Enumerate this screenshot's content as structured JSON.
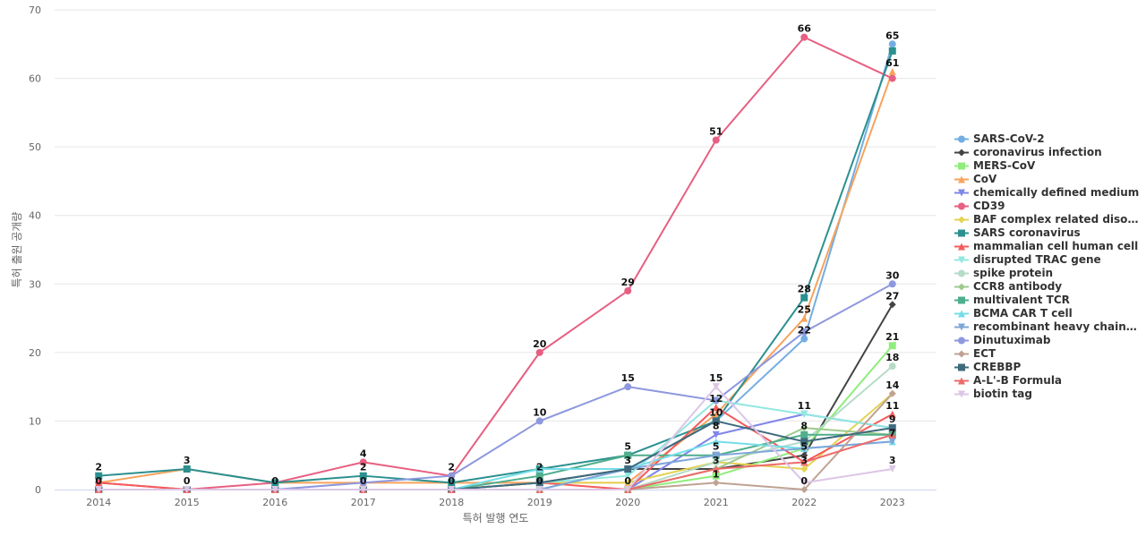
{
  "chart_data": {
    "type": "line",
    "xlabel": "특허 발행 연도",
    "ylabel": "특허 출원 공개량",
    "x": [
      "2014",
      "2015",
      "2016",
      "2017",
      "2018",
      "2019",
      "2020",
      "2021",
      "2022",
      "2023"
    ],
    "ylim": [
      0,
      70
    ],
    "yticks": [
      0,
      10,
      20,
      30,
      40,
      50,
      60,
      70
    ],
    "grid": true,
    "legend_position": "right",
    "series": [
      {
        "name": "SARS-CoV-2",
        "color": "#74ade3",
        "marker": "circle",
        "values": [
          0,
          0,
          0,
          0,
          0,
          0,
          3,
          10,
          22,
          65
        ]
      },
      {
        "name": "coronavirus infection",
        "color": "#444444",
        "marker": "diamond",
        "values": [
          0,
          0,
          0,
          0,
          0,
          1,
          3,
          3,
          5,
          27
        ]
      },
      {
        "name": "MERS-CoV",
        "color": "#90ed7d",
        "marker": "square",
        "values": [
          0,
          0,
          0,
          0,
          0,
          0,
          0,
          2,
          6,
          21
        ]
      },
      {
        "name": "CoV",
        "color": "#f7a35c",
        "marker": "triangle",
        "values": [
          1,
          3,
          1,
          1,
          1,
          1,
          1,
          11,
          25,
          61
        ]
      },
      {
        "name": "chemically defined medium",
        "color": "#8085e9",
        "marker": "triangle-down",
        "values": [
          0,
          0,
          0,
          0,
          0,
          0,
          0,
          8,
          11,
          9
        ]
      },
      {
        "name": "CD39",
        "color": "#e75f81",
        "marker": "circle",
        "values": [
          1,
          0,
          1,
          4,
          2,
          20,
          29,
          51,
          66,
          60
        ]
      },
      {
        "name": "BAF complex related disorder",
        "color": "#e4d354",
        "marker": "diamond",
        "values": [
          0,
          0,
          0,
          0,
          0,
          1,
          1,
          4,
          3,
          14
        ]
      },
      {
        "name": "SARS coronavirus",
        "color": "#2b908f",
        "marker": "square",
        "values": [
          2,
          3,
          1,
          2,
          1,
          3,
          5,
          10,
          28,
          64
        ]
      },
      {
        "name": "mammalian cell human cell",
        "color": "#f45b5b",
        "marker": "triangle",
        "values": [
          1,
          0,
          0,
          0,
          0,
          1,
          0,
          12,
          4,
          11
        ]
      },
      {
        "name": "disrupted TRAC gene",
        "color": "#91e8e1",
        "marker": "triangle-down",
        "values": [
          0,
          0,
          0,
          0,
          0,
          1,
          2,
          13,
          11,
          9
        ]
      },
      {
        "name": "spike protein",
        "color": "#b6dcc8",
        "marker": "circle",
        "values": [
          0,
          0,
          0,
          0,
          0,
          0,
          0,
          4,
          7,
          18
        ]
      },
      {
        "name": "CCR8 antibody",
        "color": "#9fc98e",
        "marker": "diamond",
        "values": [
          0,
          0,
          0,
          0,
          0,
          0,
          0,
          3,
          9,
          8
        ]
      },
      {
        "name": "multivalent TCR",
        "color": "#4fae8c",
        "marker": "square",
        "values": [
          0,
          0,
          0,
          0,
          0,
          2,
          5,
          5,
          8,
          8
        ]
      },
      {
        "name": "BCMA CAR T cell",
        "color": "#74dde8",
        "marker": "triangle",
        "values": [
          0,
          0,
          0,
          0,
          0,
          3,
          3,
          7,
          6,
          7
        ]
      },
      {
        "name": "recombinant heavy chain onl...",
        "color": "#7ea6d9",
        "marker": "triangle-down",
        "values": [
          0,
          0,
          0,
          0,
          0,
          0,
          3,
          5,
          6,
          7
        ]
      },
      {
        "name": "Dinutuximab",
        "color": "#8d98de",
        "marker": "circle",
        "values": [
          0,
          0,
          0,
          1,
          2,
          10,
          15,
          13,
          23,
          30
        ]
      },
      {
        "name": "ECT",
        "color": "#bfa292",
        "marker": "diamond",
        "values": [
          0,
          0,
          0,
          0,
          0,
          0,
          0,
          1,
          0,
          14
        ]
      },
      {
        "name": "CREBBP",
        "color": "#3e6a7e",
        "marker": "square",
        "values": [
          0,
          0,
          0,
          0,
          0,
          1,
          3,
          10,
          7,
          9
        ]
      },
      {
        "name": "A-L'-B Formula",
        "color": "#ed6a6a",
        "marker": "triangle",
        "values": [
          0,
          0,
          0,
          0,
          0,
          0,
          0,
          3,
          4,
          8
        ]
      },
      {
        "name": "biotin tag",
        "color": "#dcc6e6",
        "marker": "triangle-down",
        "values": [
          0,
          0,
          0,
          0,
          0,
          0,
          0,
          15,
          1,
          3
        ]
      }
    ],
    "data_labels": [
      {
        "x": "2014",
        "y": 2,
        "text": "2"
      },
      {
        "x": "2014",
        "y": 0,
        "text": "0"
      },
      {
        "x": "2015",
        "y": 3,
        "text": "3"
      },
      {
        "x": "2015",
        "y": 0,
        "text": "0"
      },
      {
        "x": "2016",
        "y": 0,
        "text": "0"
      },
      {
        "x": "2017",
        "y": 4,
        "text": "4"
      },
      {
        "x": "2017",
        "y": 2,
        "text": "2"
      },
      {
        "x": "2017",
        "y": 0,
        "text": "0"
      },
      {
        "x": "2018",
        "y": 2,
        "text": "2"
      },
      {
        "x": "2018",
        "y": 0,
        "text": "0"
      },
      {
        "x": "2019",
        "y": 20,
        "text": "20"
      },
      {
        "x": "2019",
        "y": 10,
        "text": "10"
      },
      {
        "x": "2019",
        "y": 2,
        "text": "2"
      },
      {
        "x": "2019",
        "y": 0,
        "text": "0"
      },
      {
        "x": "2020",
        "y": 29,
        "text": "29"
      },
      {
        "x": "2020",
        "y": 15,
        "text": "15"
      },
      {
        "x": "2020",
        "y": 5,
        "text": "5"
      },
      {
        "x": "2020",
        "y": 3,
        "text": "3"
      },
      {
        "x": "2020",
        "y": 0,
        "text": "0"
      },
      {
        "x": "2021",
        "y": 51,
        "text": "51"
      },
      {
        "x": "2021",
        "y": 15,
        "text": "15"
      },
      {
        "x": "2021",
        "y": 12,
        "text": "12"
      },
      {
        "x": "2021",
        "y": 10,
        "text": "10"
      },
      {
        "x": "2021",
        "y": 8,
        "text": "8"
      },
      {
        "x": "2021",
        "y": 5,
        "text": "5"
      },
      {
        "x": "2021",
        "y": 3,
        "text": "3"
      },
      {
        "x": "2021",
        "y": 1,
        "text": "1"
      },
      {
        "x": "2022",
        "y": 66,
        "text": "66"
      },
      {
        "x": "2022",
        "y": 28,
        "text": "28"
      },
      {
        "x": "2022",
        "y": 25,
        "text": "25"
      },
      {
        "x": "2022",
        "y": 22,
        "text": "22"
      },
      {
        "x": "2022",
        "y": 11,
        "text": "11"
      },
      {
        "x": "2022",
        "y": 8,
        "text": "8"
      },
      {
        "x": "2022",
        "y": 5,
        "text": "5"
      },
      {
        "x": "2022",
        "y": 3,
        "text": "3"
      },
      {
        "x": "2022",
        "y": 0,
        "text": "0"
      },
      {
        "x": "2023",
        "y": 65,
        "text": "65"
      },
      {
        "x": "2023",
        "y": 61,
        "text": "61"
      },
      {
        "x": "2023",
        "y": 30,
        "text": "30"
      },
      {
        "x": "2023",
        "y": 27,
        "text": "27"
      },
      {
        "x": "2023",
        "y": 21,
        "text": "21"
      },
      {
        "x": "2023",
        "y": 18,
        "text": "18"
      },
      {
        "x": "2023",
        "y": 14,
        "text": "14"
      },
      {
        "x": "2023",
        "y": 11,
        "text": "11"
      },
      {
        "x": "2023",
        "y": 9,
        "text": "9"
      },
      {
        "x": "2023",
        "y": 7,
        "text": "7"
      },
      {
        "x": "2023",
        "y": 3,
        "text": "3"
      }
    ]
  }
}
